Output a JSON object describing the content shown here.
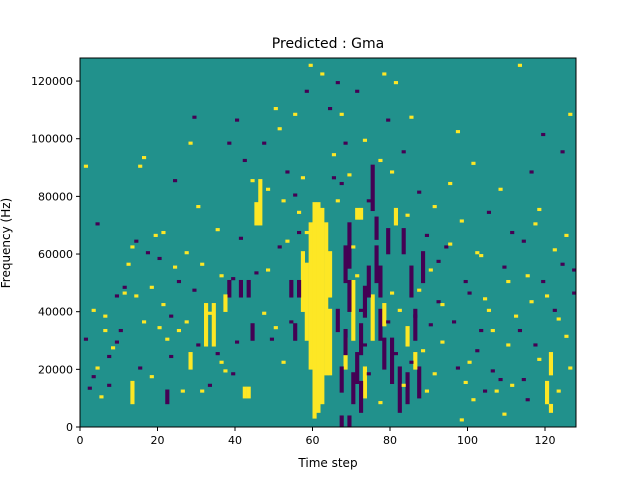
{
  "chart_data": {
    "type": "heatmap",
    "title": "Predicted : Gma",
    "xlabel": "Time step",
    "ylabel": "Frequency (Hz)",
    "xlim": [
      0,
      128
    ],
    "ylim": [
      0,
      128000
    ],
    "x_ticks": [
      0,
      20,
      40,
      60,
      80,
      100,
      120
    ],
    "y_ticks": [
      0,
      20000,
      40000,
      60000,
      80000,
      100000,
      120000
    ],
    "y_tick_labels": [
      "0",
      "20000",
      "40000",
      "60000",
      "80000",
      "100000",
      "120000"
    ],
    "grid": false,
    "legend": "none",
    "colors": {
      "background": "#21918c",
      "high": "#fde725",
      "low": "#440154"
    },
    "rows": 128,
    "cols": 128,
    "segments": [
      {
        "x": 60,
        "y0": 3,
        "y1": 77,
        "v": "high"
      },
      {
        "x": 61,
        "y0": 5,
        "y1": 77,
        "v": "high"
      },
      {
        "x": 62,
        "y0": 8,
        "y1": 75,
        "v": "high"
      },
      {
        "x": 63,
        "y0": 18,
        "y1": 70,
        "v": "high"
      },
      {
        "x": 59,
        "y0": 20,
        "y1": 70,
        "v": "high"
      },
      {
        "x": 46,
        "y0": 70,
        "y1": 85,
        "v": "high"
      },
      {
        "x": 45,
        "y0": 70,
        "y1": 77,
        "v": "high"
      },
      {
        "x": 34,
        "y0": 28,
        "y1": 42,
        "v": "high"
      },
      {
        "x": 32,
        "y0": 28,
        "y1": 42,
        "v": "high"
      },
      {
        "x": 58,
        "y0": 30,
        "y1": 56,
        "v": "high"
      },
      {
        "x": 57,
        "y0": 40,
        "y1": 60,
        "v": "high"
      },
      {
        "x": 64,
        "y0": 18,
        "y1": 40,
        "v": "high"
      },
      {
        "x": 64,
        "y0": 45,
        "y1": 60,
        "v": "high"
      },
      {
        "x": 70,
        "y0": 30,
        "y1": 50,
        "v": "high"
      },
      {
        "x": 68,
        "y0": 20,
        "y1": 30,
        "v": "high"
      },
      {
        "x": 75,
        "y0": 30,
        "y1": 45,
        "v": "high"
      },
      {
        "x": 73,
        "y0": 10,
        "y1": 20,
        "v": "high"
      },
      {
        "x": 67,
        "y0": 0,
        "y1": 3,
        "v": "low"
      },
      {
        "x": 69,
        "y0": 0,
        "y1": 3,
        "v": "low"
      },
      {
        "x": 68,
        "y0": 50,
        "y1": 62,
        "v": "low"
      },
      {
        "x": 68,
        "y0": 25,
        "y1": 33,
        "v": "low"
      },
      {
        "x": 67,
        "y0": 12,
        "y1": 20,
        "v": "low"
      },
      {
        "x": 66,
        "y0": 33,
        "y1": 40,
        "v": "low"
      },
      {
        "x": 69,
        "y0": 40,
        "y1": 50,
        "v": "low"
      },
      {
        "x": 69,
        "y0": 55,
        "y1": 70,
        "v": "low"
      },
      {
        "x": 70,
        "y0": 8,
        "y1": 18,
        "v": "low"
      },
      {
        "x": 72,
        "y0": 5,
        "y1": 15,
        "v": "low"
      },
      {
        "x": 73,
        "y0": 38,
        "y1": 48,
        "v": "low"
      },
      {
        "x": 74,
        "y0": 45,
        "y1": 55,
        "v": "low"
      },
      {
        "x": 75,
        "y0": 75,
        "y1": 90,
        "v": "low"
      },
      {
        "x": 76,
        "y0": 50,
        "y1": 62,
        "v": "low"
      },
      {
        "x": 77,
        "y0": 30,
        "y1": 40,
        "v": "low"
      },
      {
        "x": 77,
        "y0": 45,
        "y1": 55,
        "v": "low"
      },
      {
        "x": 78,
        "y0": 20,
        "y1": 30,
        "v": "low"
      },
      {
        "x": 80,
        "y0": 15,
        "y1": 30,
        "v": "low"
      },
      {
        "x": 82,
        "y0": 5,
        "y1": 20,
        "v": "low"
      },
      {
        "x": 84,
        "y0": 8,
        "y1": 18,
        "v": "low"
      },
      {
        "x": 85,
        "y0": 45,
        "y1": 55,
        "v": "low"
      },
      {
        "x": 86,
        "y0": 30,
        "y1": 40,
        "v": "low"
      },
      {
        "x": 87,
        "y0": 10,
        "y1": 20,
        "v": "low"
      },
      {
        "x": 88,
        "y0": 50,
        "y1": 60,
        "v": "low"
      },
      {
        "x": 71,
        "y0": 15,
        "y1": 25,
        "v": "low"
      },
      {
        "x": 72,
        "y0": 25,
        "y1": 35,
        "v": "low"
      },
      {
        "x": 76,
        "y0": 65,
        "y1": 72,
        "v": "low"
      },
      {
        "x": 79,
        "y0": 60,
        "y1": 68,
        "v": "low"
      },
      {
        "x": 83,
        "y0": 60,
        "y1": 68,
        "v": "low"
      },
      {
        "x": 43,
        "y0": 45,
        "y1": 50,
        "v": "low"
      },
      {
        "x": 44,
        "y0": 30,
        "y1": 35,
        "v": "low"
      },
      {
        "x": 38,
        "y0": 45,
        "y1": 50,
        "v": "low"
      },
      {
        "x": 22,
        "y0": 8,
        "y1": 12,
        "v": "low"
      },
      {
        "x": 41,
        "y0": 45,
        "y1": 50,
        "v": "low"
      },
      {
        "x": 54,
        "y0": 45,
        "y1": 50,
        "v": "low"
      },
      {
        "x": 56,
        "y0": 45,
        "y1": 50,
        "v": "low"
      },
      {
        "x": 55,
        "y0": 30,
        "y1": 35,
        "v": "low"
      },
      {
        "x": 81,
        "y0": 70,
        "y1": 75,
        "v": "high"
      },
      {
        "x": 78,
        "y0": 35,
        "y1": 42,
        "v": "high"
      },
      {
        "x": 84,
        "y0": 28,
        "y1": 34,
        "v": "high"
      },
      {
        "x": 86,
        "y0": 20,
        "y1": 25,
        "v": "high"
      },
      {
        "x": 72,
        "y0": 72,
        "y1": 75,
        "v": "high"
      },
      {
        "x": 71,
        "y0": 72,
        "y1": 75,
        "v": "high"
      },
      {
        "x": 28,
        "y0": 20,
        "y1": 25,
        "v": "high"
      },
      {
        "x": 37,
        "y0": 40,
        "y1": 45,
        "v": "high"
      },
      {
        "x": 42,
        "y0": 10,
        "y1": 13,
        "v": "high"
      },
      {
        "x": 43,
        "y0": 10,
        "y1": 13,
        "v": "high"
      },
      {
        "x": 13,
        "y0": 8,
        "y1": 15,
        "v": "high"
      },
      {
        "x": 120,
        "y0": 8,
        "y1": 15,
        "v": "high"
      },
      {
        "x": 121,
        "y0": 18,
        "y1": 25,
        "v": "high"
      },
      {
        "x": 121,
        "y0": 5,
        "y1": 7,
        "v": "high"
      }
    ],
    "cells": [
      [
        2,
        13,
        "low"
      ],
      [
        3,
        17,
        "low"
      ],
      [
        4,
        20,
        "high"
      ],
      [
        5,
        10,
        "high"
      ],
      [
        6,
        33,
        "high"
      ],
      [
        6,
        38,
        "high"
      ],
      [
        7,
        24,
        "low"
      ],
      [
        8,
        27,
        "high"
      ],
      [
        9,
        29,
        "low"
      ],
      [
        10,
        33,
        "low"
      ],
      [
        11,
        46,
        "high"
      ],
      [
        12,
        56,
        "high"
      ],
      [
        13,
        62,
        "high"
      ],
      [
        14,
        64,
        "low"
      ],
      [
        15,
        90,
        "high"
      ],
      [
        16,
        93,
        "high"
      ],
      [
        17,
        60,
        "low"
      ],
      [
        18,
        48,
        "high"
      ],
      [
        19,
        66,
        "high"
      ],
      [
        20,
        58,
        "low"
      ],
      [
        21,
        42,
        "high"
      ],
      [
        22,
        30,
        "high"
      ],
      [
        23,
        24,
        "low"
      ],
      [
        24,
        85,
        "low"
      ],
      [
        25,
        50,
        "low"
      ],
      [
        26,
        12,
        "high"
      ],
      [
        27,
        60,
        "high"
      ],
      [
        28,
        98,
        "high"
      ],
      [
        29,
        107,
        "low"
      ],
      [
        30,
        76,
        "high"
      ],
      [
        31,
        56,
        "high"
      ],
      [
        33,
        14,
        "low"
      ],
      [
        35,
        68,
        "high"
      ],
      [
        36,
        22,
        "high"
      ],
      [
        38,
        98,
        "low"
      ],
      [
        39,
        18,
        "low"
      ],
      [
        40,
        106,
        "low"
      ],
      [
        42,
        92,
        "low"
      ],
      [
        44,
        85,
        "high"
      ],
      [
        47,
        98,
        "low"
      ],
      [
        48,
        82,
        "high"
      ],
      [
        49,
        30,
        "low"
      ],
      [
        50,
        110,
        "high"
      ],
      [
        51,
        103,
        "high"
      ],
      [
        52,
        78,
        "high"
      ],
      [
        53,
        88,
        "low"
      ],
      [
        55,
        108,
        "high"
      ],
      [
        56,
        67,
        "low"
      ],
      [
        57,
        86,
        "high"
      ],
      [
        58,
        116,
        "low"
      ],
      [
        59,
        125,
        "high"
      ],
      [
        62,
        122,
        "high"
      ],
      [
        64,
        110,
        "low"
      ],
      [
        65,
        94,
        "high"
      ],
      [
        66,
        119,
        "low"
      ],
      [
        67,
        108,
        "high"
      ],
      [
        68,
        98,
        "low"
      ],
      [
        69,
        87,
        "high"
      ],
      [
        71,
        116,
        "low"
      ],
      [
        73,
        99,
        "high"
      ],
      [
        74,
        78,
        "low"
      ],
      [
        77,
        92,
        "high"
      ],
      [
        78,
        122,
        "high"
      ],
      [
        79,
        106,
        "low"
      ],
      [
        80,
        88,
        "high"
      ],
      [
        81,
        119,
        "high"
      ],
      [
        83,
        95,
        "low"
      ],
      [
        85,
        107,
        "high"
      ],
      [
        87,
        81,
        "low"
      ],
      [
        89,
        66,
        "low"
      ],
      [
        90,
        54,
        "high"
      ],
      [
        91,
        76,
        "high"
      ],
      [
        92,
        43,
        "low"
      ],
      [
        93,
        29,
        "high"
      ],
      [
        94,
        62,
        "low"
      ],
      [
        95,
        84,
        "high"
      ],
      [
        96,
        36,
        "low"
      ],
      [
        97,
        102,
        "high"
      ],
      [
        98,
        71,
        "high"
      ],
      [
        99,
        50,
        "low"
      ],
      [
        100,
        22,
        "high"
      ],
      [
        101,
        91,
        "high"
      ],
      [
        102,
        60,
        "high"
      ],
      [
        103,
        33,
        "low"
      ],
      [
        104,
        44,
        "high"
      ],
      [
        105,
        74,
        "low"
      ],
      [
        106,
        19,
        "low"
      ],
      [
        107,
        12,
        "high"
      ],
      [
        108,
        82,
        "high"
      ],
      [
        109,
        55,
        "low"
      ],
      [
        110,
        28,
        "high"
      ],
      [
        111,
        67,
        "low"
      ],
      [
        112,
        38,
        "high"
      ],
      [
        113,
        125,
        "high"
      ],
      [
        114,
        16,
        "low"
      ],
      [
        115,
        52,
        "high"
      ],
      [
        116,
        88,
        "low"
      ],
      [
        117,
        70,
        "high"
      ],
      [
        118,
        23,
        "high"
      ],
      [
        119,
        101,
        "low"
      ],
      [
        120,
        45,
        "high"
      ],
      [
        122,
        61,
        "high"
      ],
      [
        123,
        37,
        "high"
      ],
      [
        124,
        95,
        "low"
      ],
      [
        125,
        66,
        "high"
      ],
      [
        126,
        108,
        "high"
      ],
      [
        127,
        54,
        "low"
      ],
      [
        1,
        90,
        "high"
      ],
      [
        1,
        30,
        "low"
      ],
      [
        3,
        40,
        "high"
      ],
      [
        4,
        70,
        "low"
      ],
      [
        7,
        14,
        "low"
      ],
      [
        9,
        45,
        "low"
      ],
      [
        11,
        48,
        "low"
      ],
      [
        14,
        45,
        "high"
      ],
      [
        15,
        20,
        "low"
      ],
      [
        16,
        36,
        "high"
      ],
      [
        18,
        17,
        "high"
      ],
      [
        20,
        34,
        "high"
      ],
      [
        21,
        67,
        "high"
      ],
      [
        23,
        38,
        "low"
      ],
      [
        24,
        55,
        "high"
      ],
      [
        25,
        33,
        "high"
      ],
      [
        27,
        36,
        "high"
      ],
      [
        29,
        47,
        "low"
      ],
      [
        30,
        28,
        "low"
      ],
      [
        31,
        12,
        "high"
      ],
      [
        33,
        39,
        "high"
      ],
      [
        35,
        25,
        "low"
      ],
      [
        36,
        52,
        "high"
      ],
      [
        37,
        19,
        "high"
      ],
      [
        39,
        51,
        "low"
      ],
      [
        40,
        29,
        "low"
      ],
      [
        41,
        65,
        "low"
      ],
      [
        45,
        53,
        "low"
      ],
      [
        47,
        39,
        "high"
      ],
      [
        48,
        54,
        "high"
      ],
      [
        50,
        34,
        "high"
      ],
      [
        51,
        62,
        "low"
      ],
      [
        52,
        22,
        "high"
      ],
      [
        53,
        64,
        "high"
      ],
      [
        54,
        36,
        "low"
      ],
      [
        55,
        80,
        "low"
      ],
      [
        56,
        74,
        "high"
      ],
      [
        58,
        67,
        "high"
      ],
      [
        65,
        86,
        "low"
      ],
      [
        66,
        78,
        "high"
      ],
      [
        67,
        84,
        "low"
      ],
      [
        70,
        62,
        "high"
      ],
      [
        71,
        52,
        "high"
      ],
      [
        72,
        40,
        "low"
      ],
      [
        73,
        28,
        "low"
      ],
      [
        74,
        18,
        "low"
      ],
      [
        77,
        8,
        "high"
      ],
      [
        79,
        36,
        "low"
      ],
      [
        80,
        46,
        "high"
      ],
      [
        81,
        25,
        "low"
      ],
      [
        82,
        40,
        "high"
      ],
      [
        83,
        14,
        "high"
      ],
      [
        84,
        73,
        "high"
      ],
      [
        85,
        22,
        "low"
      ],
      [
        86,
        38,
        "low"
      ],
      [
        87,
        47,
        "high"
      ],
      [
        88,
        26,
        "high"
      ],
      [
        89,
        12,
        "high"
      ],
      [
        90,
        35,
        "low"
      ],
      [
        91,
        18,
        "high"
      ],
      [
        92,
        57,
        "low"
      ],
      [
        93,
        42,
        "high"
      ],
      [
        95,
        63,
        "high"
      ],
      [
        97,
        20,
        "low"
      ],
      [
        98,
        2,
        "high"
      ],
      [
        99,
        15,
        "high"
      ],
      [
        100,
        46,
        "low"
      ],
      [
        101,
        9,
        "high"
      ],
      [
        102,
        26,
        "low"
      ],
      [
        103,
        59,
        "high"
      ],
      [
        104,
        12,
        "low"
      ],
      [
        105,
        40,
        "high"
      ],
      [
        106,
        33,
        "high"
      ],
      [
        108,
        16,
        "low"
      ],
      [
        109,
        4,
        "high"
      ],
      [
        110,
        50,
        "high"
      ],
      [
        111,
        14,
        "high"
      ],
      [
        113,
        33,
        "low"
      ],
      [
        114,
        64,
        "low"
      ],
      [
        115,
        9,
        "low"
      ],
      [
        116,
        43,
        "high"
      ],
      [
        117,
        28,
        "low"
      ],
      [
        118,
        75,
        "high"
      ],
      [
        119,
        50,
        "low"
      ],
      [
        122,
        40,
        "low"
      ],
      [
        123,
        12,
        "high"
      ],
      [
        124,
        56,
        "low"
      ],
      [
        125,
        31,
        "high"
      ],
      [
        126,
        20,
        "high"
      ],
      [
        127,
        46,
        "low"
      ]
    ]
  }
}
